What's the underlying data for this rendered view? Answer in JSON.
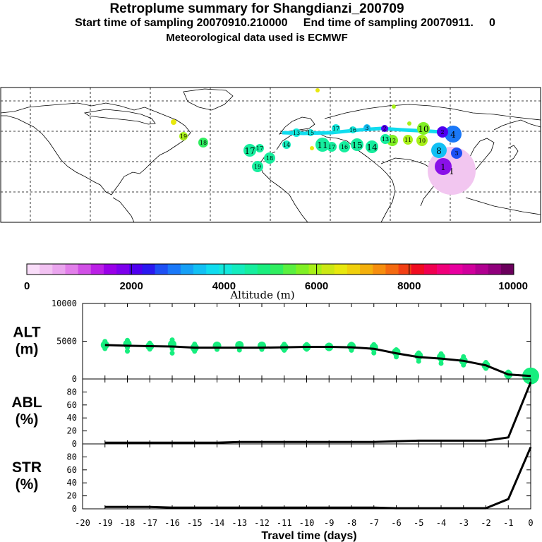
{
  "titles": {
    "title": "Retroplume summary for Shangdianzi_200709",
    "subtitle": "Start time of sampling 20070910.210000     End time of sampling 20070911.     0",
    "met": "Meteorological data used is ECMWF"
  },
  "colorbar": {
    "ticks": [
      "0",
      "2000",
      "4000",
      "6000",
      "8000",
      "10000"
    ],
    "label": "Altitude (m)",
    "colors": [
      "#f9ddf9",
      "#f2c2f2",
      "#eaa5ee",
      "#e27fea",
      "#d150e6",
      "#bb20e6",
      "#9a00e8",
      "#7d00ec",
      "#4f00ef",
      "#2a19f0",
      "#1e50f4",
      "#1a78f8",
      "#16a0f6",
      "#12c0f4",
      "#10dcef",
      "#12e8dc",
      "#14ecbe",
      "#16ee9e",
      "#1aee7e",
      "#30ee60",
      "#5af040",
      "#80f024",
      "#a8f018",
      "#cce814",
      "#e8e80e",
      "#f0d00c",
      "#f4b00c",
      "#f68e0e",
      "#f46a10",
      "#f23f14",
      "#f00c20",
      "#f00050",
      "#f0007a",
      "#e800a0",
      "#d0009c",
      "#b00090",
      "#90007c",
      "#6a005c"
    ]
  },
  "map_labels": [
    {
      "text": "19"
    },
    {
      "text": "18"
    },
    {
      "text": "17"
    },
    {
      "text": "16"
    },
    {
      "text": "15"
    },
    {
      "text": "14"
    },
    {
      "text": "13"
    },
    {
      "text": "12"
    },
    {
      "text": "11"
    },
    {
      "text": "10"
    },
    {
      "text": "9"
    },
    {
      "text": "8"
    },
    {
      "text": "6"
    },
    {
      "text": "4"
    },
    {
      "text": "3"
    },
    {
      "text": "2"
    },
    {
      "text": "1"
    }
  ],
  "chart_data": [
    {
      "type": "scatter",
      "id": "altitude",
      "ylabel": "ALT\n(m)",
      "ylabel_lines": [
        "ALT",
        "(m)"
      ],
      "ylim": [
        0,
        10000
      ],
      "yticks": [
        "0",
        "5000",
        "10000"
      ],
      "x": [
        -19,
        -18,
        -17,
        -16,
        -15,
        -14,
        -13,
        -12,
        -11,
        -10,
        -9,
        -8,
        -7,
        -6,
        -5,
        -4,
        -3,
        -2,
        -1,
        0
      ],
      "values": [
        4500,
        4400,
        4350,
        4300,
        4150,
        4150,
        4150,
        4150,
        4200,
        4250,
        4250,
        4200,
        4000,
        3400,
        2900,
        2700,
        2400,
        1800,
        600,
        400
      ]
    },
    {
      "type": "line",
      "id": "abl",
      "ylabel_lines": [
        "ABL",
        "(%)"
      ],
      "ylim": [
        0,
        100
      ],
      "yticks": [
        "0",
        "20",
        "40",
        "60",
        "80"
      ],
      "x": [
        -19,
        -18,
        -17,
        -16,
        -15,
        -14,
        -13,
        -12,
        -11,
        -10,
        -9,
        -8,
        -7,
        -6,
        -5,
        -4,
        -3,
        -2,
        -1,
        0
      ],
      "values": [
        2,
        2,
        2,
        2,
        2,
        2,
        3,
        3,
        3,
        3,
        3,
        3,
        3,
        4,
        5,
        5,
        5,
        5,
        10,
        95
      ]
    },
    {
      "type": "line",
      "id": "str",
      "ylabel_lines": [
        "STR",
        "(%)"
      ],
      "ylim": [
        0,
        100
      ],
      "yticks": [
        "0",
        "20",
        "40",
        "60",
        "80"
      ],
      "x": [
        -19,
        -18,
        -17,
        -16,
        -15,
        -14,
        -13,
        -12,
        -11,
        -10,
        -9,
        -8,
        -7,
        -6,
        -5,
        -4,
        -3,
        -2,
        -1,
        0
      ],
      "values": [
        3,
        3,
        3,
        2,
        2,
        2,
        2,
        2,
        2,
        2,
        2,
        2,
        2,
        1,
        1,
        1,
        1,
        1,
        15,
        95
      ]
    }
  ],
  "xaxis": {
    "xlabel": "Travel time (days)",
    "ticks": [
      "-20",
      "-19",
      "-18",
      "-17",
      "-16",
      "-15",
      "-14",
      "-13",
      "-12",
      "-11",
      "-10",
      "-9",
      "-8",
      "-7",
      "-6",
      "-5",
      "-4",
      "-3",
      "-2",
      "-1",
      "0"
    ]
  }
}
